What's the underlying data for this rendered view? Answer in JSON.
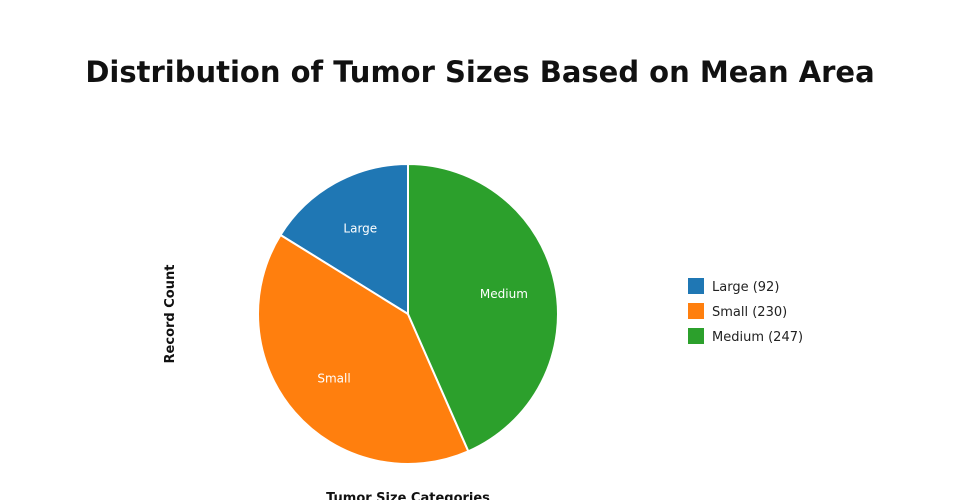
{
  "chart_data": {
    "type": "pie",
    "title": "Distribution of Tumor Sizes Based on Mean Area",
    "xlabel": "Tumor Size Categories",
    "ylabel": "Record Count",
    "legend_position": "right",
    "slices": [
      {
        "label": "Large",
        "value": 92,
        "color": "#1f77b4",
        "legend": "Large (92)"
      },
      {
        "label": "Small",
        "value": 230,
        "color": "#ff7f0e",
        "legend": "Small (230)"
      },
      {
        "label": "Medium",
        "value": 247,
        "color": "#2ca02c",
        "legend": "Medium (247)"
      }
    ]
  }
}
